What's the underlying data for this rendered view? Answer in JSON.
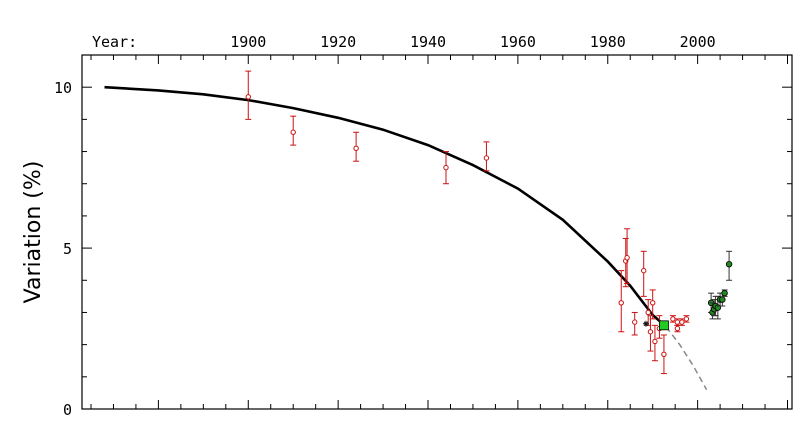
{
  "chart_data": {
    "type": "scatter",
    "title": "",
    "xlabel": "",
    "top_axis_prefix": "Year:",
    "ylabel": "Variation (%)",
    "x_ticks": [
      1900,
      1920,
      1940,
      1960,
      1980,
      2000
    ],
    "y_ticks": [
      0,
      5,
      10
    ],
    "xlim": [
      1863,
      2021
    ],
    "ylim": [
      0,
      11
    ],
    "grid": false,
    "series": [
      {
        "kind": "points_with_errorbars",
        "color": "#cc1111",
        "marker": "open-circle",
        "points": [
          {
            "x": 1900,
            "y": 9.7,
            "lo": 9.0,
            "hi": 10.5
          },
          {
            "x": 1910,
            "y": 8.6,
            "lo": 8.2,
            "hi": 9.1
          },
          {
            "x": 1924,
            "y": 8.1,
            "lo": 7.7,
            "hi": 8.6
          },
          {
            "x": 1944,
            "y": 7.5,
            "lo": 7.0,
            "hi": 8.0
          },
          {
            "x": 1953,
            "y": 7.8,
            "lo": 7.4,
            "hi": 8.3
          },
          {
            "x": 1983,
            "y": 3.3,
            "lo": 2.4,
            "hi": 4.3
          },
          {
            "x": 1984,
            "y": 4.6,
            "lo": 3.8,
            "hi": 5.3
          },
          {
            "x": 1984.3,
            "y": 4.7,
            "lo": 3.9,
            "hi": 5.6
          },
          {
            "x": 1986,
            "y": 2.7,
            "lo": 2.3,
            "hi": 3.0
          },
          {
            "x": 1988,
            "y": 4.3,
            "lo": 3.5,
            "hi": 4.9
          },
          {
            "x": 1989,
            "y": 3.0,
            "lo": 2.6,
            "hi": 3.4
          },
          {
            "x": 1989.5,
            "y": 2.4,
            "lo": 1.8,
            "hi": 2.9
          },
          {
            "x": 1990,
            "y": 3.3,
            "lo": 2.8,
            "hi": 3.7
          },
          {
            "x": 1990.5,
            "y": 2.1,
            "lo": 1.5,
            "hi": 2.6
          },
          {
            "x": 1991.5,
            "y": 2.5,
            "lo": 2.2,
            "hi": 2.9
          },
          {
            "x": 1992.5,
            "y": 1.7,
            "lo": 1.1,
            "hi": 2.3
          },
          {
            "x": 1994.5,
            "y": 2.8,
            "lo": 2.7,
            "hi": 2.9
          },
          {
            "x": 1995.5,
            "y": 2.7,
            "lo": 2.6,
            "hi": 2.8
          },
          {
            "x": 1996.5,
            "y": 2.7,
            "lo": 2.6,
            "hi": 2.8
          },
          {
            "x": 1997.5,
            "y": 2.8,
            "lo": 2.7,
            "hi": 2.9
          },
          {
            "x": 1995.5,
            "y": 2.5,
            "lo": 2.4,
            "hi": 2.6
          }
        ]
      },
      {
        "kind": "points_with_errorbars",
        "color": "#228822",
        "marker": "filled-circle",
        "points": [
          {
            "x": 2003,
            "y": 3.3,
            "lo": 3.0,
            "hi": 3.6
          },
          {
            "x": 2003.3,
            "y": 3.0,
            "lo": 2.8,
            "hi": 3.3
          },
          {
            "x": 2003.7,
            "y": 3.1,
            "lo": 2.9,
            "hi": 3.4
          },
          {
            "x": 2004,
            "y": 3.2,
            "lo": 2.9,
            "hi": 3.5
          },
          {
            "x": 2004.5,
            "y": 3.15,
            "lo": 2.8,
            "hi": 3.5
          },
          {
            "x": 2005,
            "y": 3.4,
            "lo": 3.2,
            "hi": 3.6
          },
          {
            "x": 2005.5,
            "y": 3.4,
            "lo": 3.2,
            "hi": 3.6
          },
          {
            "x": 2006,
            "y": 3.6,
            "lo": 3.5,
            "hi": 3.7
          },
          {
            "x": 2007,
            "y": 4.5,
            "lo": 4.0,
            "hi": 4.9
          }
        ]
      },
      {
        "kind": "single_marker",
        "color": "#22cc22",
        "marker": "filled-square",
        "points": [
          {
            "x": 1992.5,
            "y": 2.6
          }
        ]
      },
      {
        "kind": "single_marker",
        "color": "#111111",
        "marker": "star",
        "points": [
          {
            "x": 1988.5,
            "y": 2.65
          }
        ]
      },
      {
        "kind": "fit_curve",
        "color": "#000000",
        "style": "solid",
        "points": [
          {
            "x": 1868,
            "y": 10.0
          },
          {
            "x": 1880,
            "y": 9.9
          },
          {
            "x": 1890,
            "y": 9.78
          },
          {
            "x": 1900,
            "y": 9.6
          },
          {
            "x": 1910,
            "y": 9.35
          },
          {
            "x": 1920,
            "y": 9.05
          },
          {
            "x": 1930,
            "y": 8.68
          },
          {
            "x": 1940,
            "y": 8.2
          },
          {
            "x": 1950,
            "y": 7.58
          },
          {
            "x": 1960,
            "y": 6.85
          },
          {
            "x": 1970,
            "y": 5.88
          },
          {
            "x": 1980,
            "y": 4.58
          },
          {
            "x": 1985,
            "y": 3.83
          },
          {
            "x": 1990,
            "y": 2.92
          },
          {
            "x": 1993,
            "y": 2.55
          }
        ]
      },
      {
        "kind": "fit_curve",
        "color": "#888888",
        "style": "dashed",
        "points": [
          {
            "x": 1993,
            "y": 2.55
          },
          {
            "x": 1996,
            "y": 2.0
          },
          {
            "x": 1999,
            "y": 1.35
          },
          {
            "x": 2002,
            "y": 0.6
          }
        ]
      }
    ]
  }
}
